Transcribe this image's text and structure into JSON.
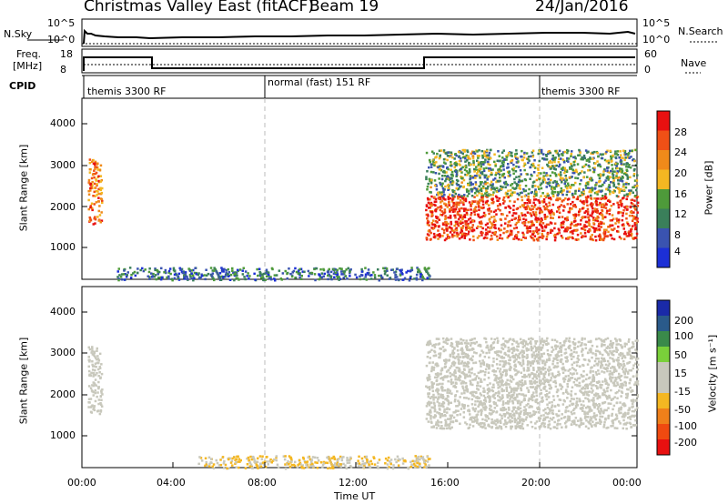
{
  "header": {
    "station": "Christmas Valley East (fitACF)",
    "beam": "Beam 19",
    "date": "24/Jan/2016"
  },
  "noise_panel": {
    "left_label": "N.Sky",
    "left_ticks": [
      "10^5",
      "10^0"
    ],
    "right_label": "N.Search",
    "right_ticks": [
      "10^5",
      "10^0"
    ]
  },
  "freq_panel": {
    "left_label_1": "Freq.",
    "left_label_2": "[MHz]",
    "left_ticks": [
      "18",
      "8"
    ],
    "right_label": "Nave",
    "right_ticks": [
      "60",
      "0"
    ]
  },
  "cpid": {
    "label": "CPID",
    "segments": [
      "themis 3300 RF",
      "normal (fast) 151 RF",
      "themis 3300 RF"
    ]
  },
  "colors": {
    "power_scale": [
      "#1c2fd6",
      "#3a53b0",
      "#3a7f5a",
      "#4e9a3a",
      "#f4b722",
      "#f08a1a",
      "#f05016",
      "#e81010"
    ],
    "velocity_scale": [
      "#e81010",
      "#f04a10",
      "#f0801a",
      "#f4b722",
      "#c8c8bc",
      "#c8c8bc",
      "#7ad03a",
      "#3a8a4a",
      "#2a5a8a",
      "#1a2aa8"
    ]
  },
  "chart_data": [
    {
      "type": "heatmap",
      "name": "power",
      "xlabel": "",
      "ylabel": "Slant Range [km]",
      "y_ticks": [
        "4000",
        "3000",
        "2000",
        "1000"
      ],
      "ylim": [
        200,
        4500
      ],
      "xlim": [
        "00:00",
        "24:00"
      ],
      "colorbar_label": "Power [dB]",
      "colorbar_ticks": [
        "28",
        "24",
        "20",
        "16",
        "12",
        "8",
        "4"
      ],
      "colorbar_range": [
        0,
        30
      ],
      "features": [
        {
          "x_start": "00:15",
          "x_end": "00:50",
          "range_low": 1500,
          "range_high": 3100,
          "value": 22
        },
        {
          "x_start": "14:50",
          "x_end": "24:00",
          "range_low": 1150,
          "range_high": 2200,
          "value": 26
        },
        {
          "x_start": "14:50",
          "x_end": "24:00",
          "range_low": 2200,
          "range_high": 3300,
          "value": 12
        },
        {
          "x_start": "01:30",
          "x_end": "15:00",
          "range_low": 200,
          "range_high": 500,
          "value": 8
        }
      ]
    },
    {
      "type": "heatmap",
      "name": "velocity",
      "xlabel": "Time UT",
      "ylabel": "Slant Range [km]",
      "x_ticks": [
        "00:00",
        "04:00",
        "08:00",
        "12:00",
        "16:00",
        "20:00",
        "00:00"
      ],
      "y_ticks": [
        "4000",
        "3000",
        "2000",
        "1000"
      ],
      "ylim": [
        200,
        4500
      ],
      "colorbar_label": "Velocity [m s⁻¹]",
      "colorbar_ticks": [
        "200",
        "100",
        "50",
        "15",
        "-15",
        "-50",
        "-100",
        "-200"
      ],
      "colorbar_range": [
        -250,
        250
      ],
      "features": [
        {
          "x_start": "00:15",
          "x_end": "00:50",
          "range_low": 1500,
          "range_high": 3100,
          "value": 0
        },
        {
          "x_start": "14:50",
          "x_end": "24:00",
          "range_low": 1150,
          "range_high": 2200,
          "value": 0
        },
        {
          "x_start": "14:50",
          "x_end": "24:00",
          "range_low": 2200,
          "range_high": 3300,
          "value": 0
        },
        {
          "x_start": "05:00",
          "x_end": "15:00",
          "range_low": 200,
          "range_high": 500,
          "value": -50
        }
      ]
    }
  ]
}
